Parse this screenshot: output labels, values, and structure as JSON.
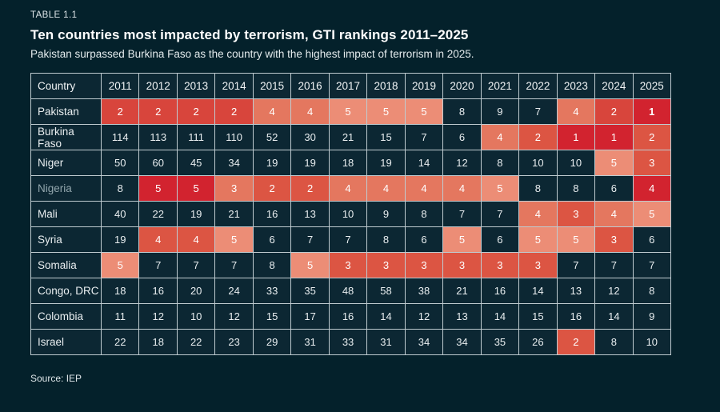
{
  "header": {
    "table_label": "TABLE 1.1",
    "title": "Ten countries most impacted by terrorism, GTI rankings 2011–2025",
    "subtitle": "Pakistan surpassed Burkina Faso as the country with the highest impact of terrorism in 2025."
  },
  "footer": {
    "source": "Source: IEP"
  },
  "palette": {
    "page_background": "#04212b",
    "cell_background": "#0c2733",
    "grid_border": "#bfcbd0",
    "text": "#eef2f3",
    "muted_country_label": "#93a7ae",
    "heat": {
      "1": "#d2232f",
      "2": "#d8453c",
      "3": "#dc5543",
      "4": "#e4775f",
      "5": "#ec8d76"
    }
  },
  "chart_data": {
    "type": "table",
    "title": "Ten countries most impacted by terrorism, GTI rankings 2011–2025",
    "columns": [
      "Country",
      "2011",
      "2012",
      "2013",
      "2014",
      "2015",
      "2016",
      "2017",
      "2018",
      "2019",
      "2020",
      "2021",
      "2022",
      "2023",
      "2024",
      "2025"
    ],
    "heat_note": "colors array: 0 = no highlight (dark cell), 1–5 = heat palette key",
    "rows": [
      {
        "country": "Pakistan",
        "muted": false,
        "bold_index": 14,
        "values": [
          2,
          2,
          2,
          2,
          4,
          4,
          5,
          5,
          5,
          8,
          9,
          7,
          4,
          2,
          1
        ],
        "colors": [
          2,
          2,
          2,
          2,
          4,
          4,
          5,
          5,
          5,
          0,
          0,
          0,
          4,
          2,
          1
        ]
      },
      {
        "country": "Burkina Faso",
        "muted": false,
        "bold_index": null,
        "values": [
          114,
          113,
          111,
          110,
          52,
          30,
          21,
          15,
          7,
          6,
          4,
          2,
          1,
          1,
          2
        ],
        "colors": [
          0,
          0,
          0,
          0,
          0,
          0,
          0,
          0,
          0,
          0,
          4,
          3,
          1,
          1,
          3
        ]
      },
      {
        "country": "Niger",
        "muted": false,
        "bold_index": null,
        "values": [
          50,
          60,
          45,
          34,
          19,
          19,
          18,
          19,
          14,
          12,
          8,
          10,
          10,
          5,
          3
        ],
        "colors": [
          0,
          0,
          0,
          0,
          0,
          0,
          0,
          0,
          0,
          0,
          0,
          0,
          0,
          5,
          3
        ]
      },
      {
        "country": "Nigeria",
        "muted": true,
        "bold_index": null,
        "values": [
          8,
          5,
          5,
          3,
          2,
          2,
          4,
          4,
          4,
          4,
          5,
          8,
          8,
          6,
          4
        ],
        "colors": [
          0,
          1,
          1,
          4,
          3,
          3,
          4,
          4,
          4,
          4,
          5,
          0,
          0,
          0,
          1
        ]
      },
      {
        "country": "Mali",
        "muted": false,
        "bold_index": null,
        "values": [
          40,
          22,
          19,
          21,
          16,
          13,
          10,
          9,
          8,
          7,
          7,
          4,
          3,
          4,
          5
        ],
        "colors": [
          0,
          0,
          0,
          0,
          0,
          0,
          0,
          0,
          0,
          0,
          0,
          4,
          3,
          4,
          5
        ]
      },
      {
        "country": "Syria",
        "muted": false,
        "bold_index": null,
        "values": [
          19,
          4,
          4,
          5,
          6,
          7,
          7,
          8,
          6,
          5,
          6,
          5,
          5,
          3,
          6
        ],
        "colors": [
          0,
          3,
          3,
          5,
          0,
          0,
          0,
          0,
          0,
          5,
          0,
          5,
          5,
          3,
          0
        ]
      },
      {
        "country": "Somalia",
        "muted": false,
        "bold_index": null,
        "values": [
          5,
          7,
          7,
          7,
          8,
          5,
          3,
          3,
          3,
          3,
          3,
          3,
          7,
          7,
          7
        ],
        "colors": [
          5,
          0,
          0,
          0,
          0,
          5,
          3,
          3,
          3,
          3,
          3,
          3,
          0,
          0,
          0
        ]
      },
      {
        "country": "Congo, DRC",
        "muted": false,
        "bold_index": null,
        "values": [
          18,
          16,
          20,
          24,
          33,
          35,
          48,
          58,
          38,
          21,
          16,
          14,
          13,
          12,
          8
        ],
        "colors": [
          0,
          0,
          0,
          0,
          0,
          0,
          0,
          0,
          0,
          0,
          0,
          0,
          0,
          0,
          0
        ]
      },
      {
        "country": "Colombia",
        "muted": false,
        "bold_index": null,
        "values": [
          11,
          12,
          10,
          12,
          15,
          17,
          16,
          14,
          12,
          13,
          14,
          15,
          16,
          14,
          9
        ],
        "colors": [
          0,
          0,
          0,
          0,
          0,
          0,
          0,
          0,
          0,
          0,
          0,
          0,
          0,
          0,
          0
        ]
      },
      {
        "country": "Israel",
        "muted": false,
        "bold_index": null,
        "values": [
          22,
          18,
          22,
          23,
          29,
          31,
          33,
          31,
          34,
          34,
          35,
          26,
          2,
          8,
          10
        ],
        "colors": [
          0,
          0,
          0,
          0,
          0,
          0,
          0,
          0,
          0,
          0,
          0,
          0,
          3,
          0,
          0
        ]
      }
    ]
  }
}
